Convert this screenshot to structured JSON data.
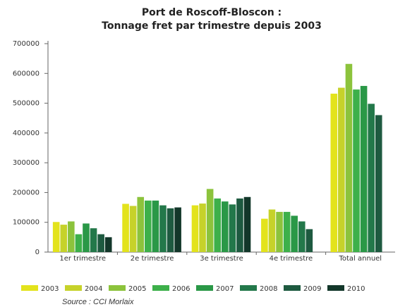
{
  "chart_data": {
    "type": "bar",
    "title": "Port de Roscoff-Bloscon :",
    "subtitle": "Tonnage fret par trimestre depuis 2003",
    "source": "Source : CCI Morlaix",
    "categories": [
      "1er trimestre",
      "2e trimestre",
      "3e trimestre",
      "4e trimestre",
      "Total annuel"
    ],
    "series": [
      {
        "name": "2003",
        "color": "#e3e31c",
        "values": [
          101000,
          162000,
          157000,
          112000,
          532000
        ]
      },
      {
        "name": "2004",
        "color": "#c6d22a",
        "values": [
          92000,
          155000,
          163000,
          143000,
          552000
        ]
      },
      {
        "name": "2005",
        "color": "#8cc33c",
        "values": [
          103000,
          185000,
          212000,
          135000,
          632000
        ]
      },
      {
        "name": "2006",
        "color": "#3db04a",
        "values": [
          60000,
          173000,
          180000,
          135000,
          546000
        ]
      },
      {
        "name": "2007",
        "color": "#2a9847",
        "values": [
          96000,
          173000,
          170000,
          122000,
          558000
        ]
      },
      {
        "name": "2008",
        "color": "#23784a",
        "values": [
          80000,
          157000,
          160000,
          103000,
          498000
        ]
      },
      {
        "name": "2009",
        "color": "#1e5a40",
        "values": [
          60000,
          147000,
          180000,
          77000,
          460000
        ]
      },
      {
        "name": "2010",
        "color": "#13372a",
        "values": [
          50000,
          150000,
          185000,
          null,
          null
        ]
      }
    ],
    "ylim": [
      0,
      700000
    ],
    "yticks": [
      0,
      100000,
      200000,
      300000,
      400000,
      500000,
      600000,
      700000
    ],
    "grid": false
  }
}
